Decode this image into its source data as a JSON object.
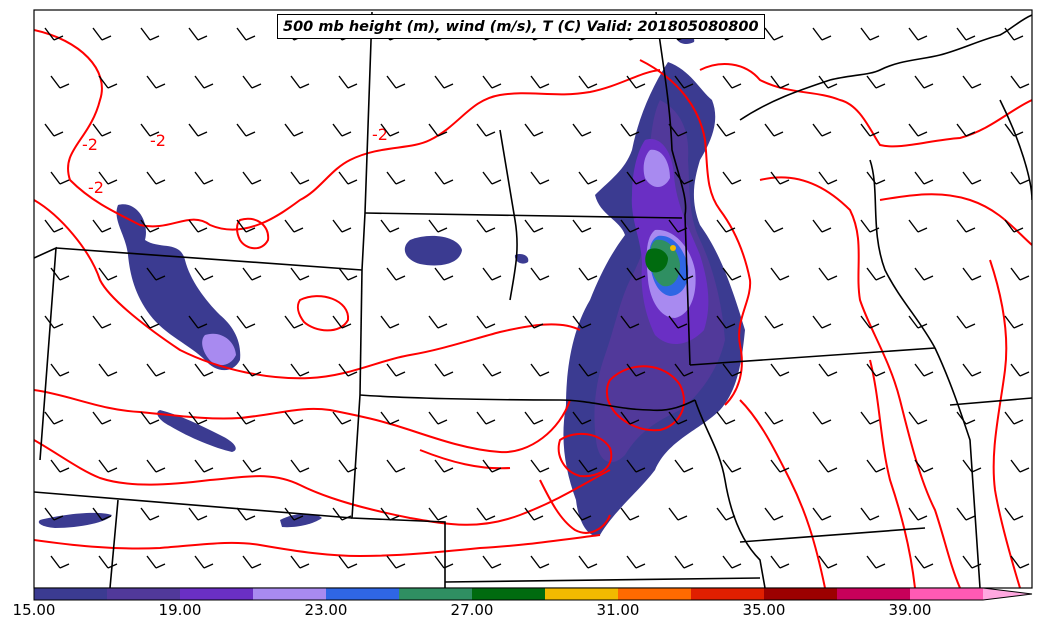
{
  "title": "500 mb height (m), wind (m/s), T (C) Valid: 201805080800",
  "colorbar": {
    "tick_labels": [
      "15.00",
      "19.00",
      "23.00",
      "27.00",
      "31.00",
      "35.00",
      "39.00"
    ],
    "tick_values": [
      15,
      19,
      23,
      27,
      31,
      35,
      39
    ],
    "range": [
      15,
      41
    ],
    "extend": "max",
    "colors": [
      "#3b3b91",
      "#51399a",
      "#6a2fc4",
      "#a88af0",
      "#2f66e4",
      "#2f8f62",
      "#006b0f",
      "#f2ba00",
      "#ff6a00",
      "#e01f00",
      "#9c0000",
      "#c8005a",
      "#ff5ab4",
      "#ffa8e0"
    ]
  },
  "contours": {
    "color": "#ff0000",
    "labels": [
      "-2",
      "-2",
      "-2",
      "-2"
    ]
  },
  "map": {
    "borders_color": "#000000",
    "barb_color": "#000000"
  }
}
